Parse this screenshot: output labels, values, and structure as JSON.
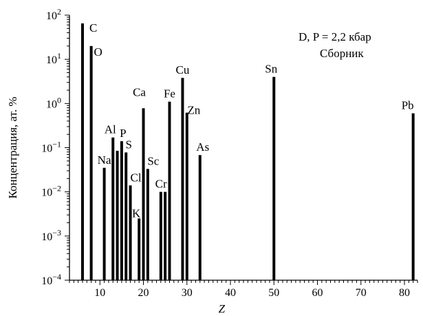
{
  "chart_data": {
    "type": "bar",
    "y_scale": "log",
    "xlim": [
      3,
      83
    ],
    "ylim": [
      0.0001,
      100
    ],
    "x_ticks": [
      10,
      20,
      30,
      40,
      50,
      60,
      70,
      80
    ],
    "x_tick_labels": [
      "10",
      "20",
      "30",
      "40",
      "50",
      "60",
      "70",
      "80"
    ],
    "y_tick_exponents": [
      -4,
      -3,
      -2,
      -1,
      0,
      1,
      2
    ],
    "y_tick_base": "10",
    "xlabel": "Z",
    "ylabel": "Концентрация, ат. %",
    "annotation_line1": "D, P = 2,2 кбар",
    "annotation_line2": "Сборник",
    "grid": false,
    "legend": "none",
    "bar_color": "#000000",
    "bars": [
      {
        "element": "C",
        "z": 6,
        "value": 65
      },
      {
        "element": "O",
        "z": 8,
        "value": 20
      },
      {
        "element": "Na",
        "z": 11,
        "value": 0.035
      },
      {
        "element": "Al",
        "z": 13,
        "value": 0.17
      },
      {
        "element": "",
        "z": 14,
        "value": 0.085
      },
      {
        "element": "P",
        "z": 15,
        "value": 0.14
      },
      {
        "element": "S",
        "z": 16,
        "value": 0.078
      },
      {
        "element": "Cl",
        "z": 17,
        "value": 0.014
      },
      {
        "element": "K",
        "z": 19,
        "value": 0.0025
      },
      {
        "element": "Ca",
        "z": 20,
        "value": 0.78
      },
      {
        "element": "Sc",
        "z": 21,
        "value": 0.033
      },
      {
        "element": "",
        "z": 24,
        "value": 0.01
      },
      {
        "element": "Cr",
        "z": 25,
        "value": 0.01
      },
      {
        "element": "Fe",
        "z": 26,
        "value": 1.1
      },
      {
        "element": "Cu",
        "z": 29,
        "value": 3.8
      },
      {
        "element": "Zn",
        "z": 30,
        "value": 0.62
      },
      {
        "element": "As",
        "z": 33,
        "value": 0.068
      },
      {
        "element": "Sn",
        "z": 50,
        "value": 4.0
      },
      {
        "element": "Pb",
        "z": 82,
        "value": 0.6
      }
    ]
  }
}
